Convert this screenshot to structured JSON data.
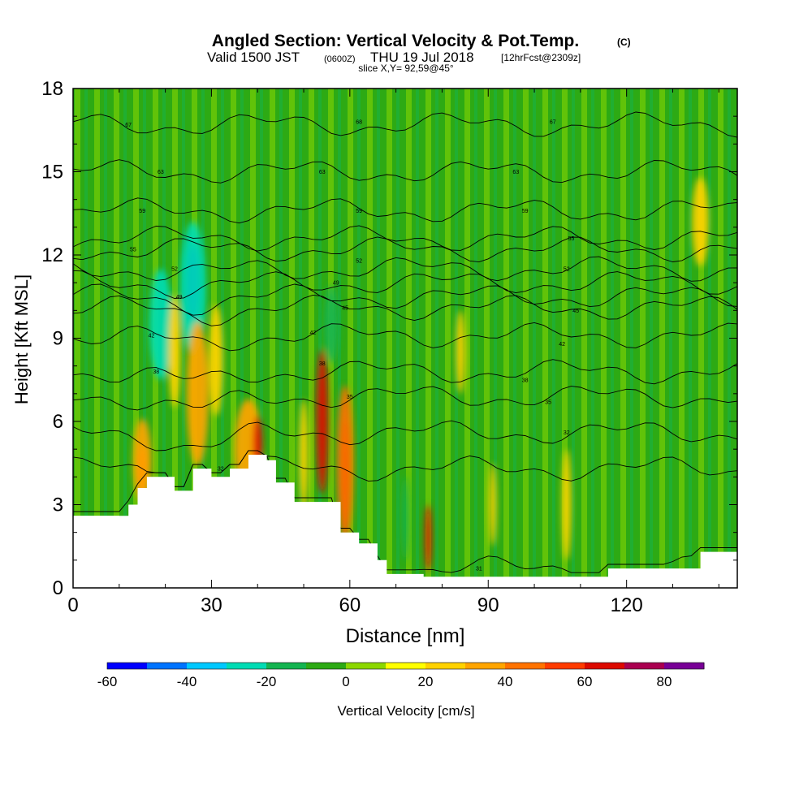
{
  "chart_data": {
    "type": "heatmap",
    "title": "Angled Section: Vertical Velocity & Pot.Temp.",
    "title_unit": "(C)",
    "subtitle": {
      "valid_prefix": "Valid 1500 JST",
      "utc": "(0600Z)",
      "date": "THU 19 Jul 2018",
      "forecast": "[12hrFcst@2309z]"
    },
    "slice_label": "slice X,Y= 92,59@45°",
    "xlabel": "Distance [nm]",
    "ylabel": "Height [Kft MSL]",
    "xlim": [
      0,
      144
    ],
    "ylim": [
      0,
      18
    ],
    "x_ticks": [
      0,
      30,
      60,
      90,
      120
    ],
    "y_ticks": [
      0,
      3,
      6,
      9,
      12,
      15,
      18
    ],
    "grid": false,
    "colorbar": {
      "label": "Vertical Velocity [cm/s]",
      "placement": "bottom",
      "min": -60,
      "max": 90,
      "step": 10,
      "tick_values": [
        -60,
        -40,
        -20,
        0,
        20,
        40,
        60,
        80
      ],
      "colors": [
        "#0000ff",
        "#0074ff",
        "#00c8ff",
        "#00dcb4",
        "#14b450",
        "#2daa14",
        "#8cd700",
        "#ffff00",
        "#ffd200",
        "#ffa500",
        "#ff7300",
        "#ff3c00",
        "#dc0a00",
        "#aa0050",
        "#780096"
      ]
    },
    "background_field_value": 0,
    "terrain_profile": [
      [
        0,
        2.6
      ],
      [
        10,
        2.6
      ],
      [
        12,
        3.0
      ],
      [
        14,
        3.6
      ],
      [
        16,
        4.0
      ],
      [
        20,
        4.0
      ],
      [
        22,
        3.5
      ],
      [
        26,
        4.3
      ],
      [
        28,
        4.3
      ],
      [
        30,
        4.0
      ],
      [
        34,
        4.3
      ],
      [
        38,
        4.8
      ],
      [
        42,
        4.6
      ],
      [
        44,
        3.8
      ],
      [
        48,
        3.1
      ],
      [
        54,
        3.1
      ],
      [
        58,
        2.0
      ],
      [
        62,
        1.6
      ],
      [
        66,
        1.0
      ],
      [
        68,
        0.5
      ],
      [
        76,
        0.4
      ],
      [
        116,
        0.7
      ],
      [
        128,
        0.7
      ],
      [
        136,
        1.3
      ],
      [
        144,
        1.3
      ]
    ],
    "velocity_cells": [
      {
        "x": 15,
        "z": 4.2,
        "rx": 1.2,
        "rz": 0.9,
        "w": 55
      },
      {
        "x": 15,
        "z": 4.6,
        "rx": 2.0,
        "rz": 1.5,
        "w": 30
      },
      {
        "x": 19,
        "z": 9.5,
        "rx": 2.5,
        "rz": 2.0,
        "w": -25
      },
      {
        "x": 22,
        "z": 8.5,
        "rx": 1.3,
        "rz": 2.0,
        "w": 25
      },
      {
        "x": 26,
        "z": 11.0,
        "rx": 1.4,
        "rz": 1.4,
        "w": -55
      },
      {
        "x": 26,
        "z": 10.8,
        "rx": 2.8,
        "rz": 2.4,
        "w": -30
      },
      {
        "x": 27,
        "z": 7.0,
        "rx": 2.4,
        "rz": 2.6,
        "w": 35
      },
      {
        "x": 31,
        "z": 8.2,
        "rx": 1.5,
        "rz": 2.0,
        "w": 25
      },
      {
        "x": 38,
        "z": 5.0,
        "rx": 3.0,
        "rz": 1.8,
        "w": 35
      },
      {
        "x": 40,
        "z": 5.2,
        "rx": 1.0,
        "rz": 1.0,
        "w": 60
      },
      {
        "x": 50,
        "z": 4.8,
        "rx": 1.0,
        "rz": 2.0,
        "w": 25
      },
      {
        "x": 54,
        "z": 6.0,
        "rx": 1.3,
        "rz": 2.6,
        "w": 60
      },
      {
        "x": 56,
        "z": 9.5,
        "rx": 1.6,
        "rz": 1.4,
        "w": -20
      },
      {
        "x": 59,
        "z": 4.0,
        "rx": 1.0,
        "rz": 2.0,
        "w": 75
      },
      {
        "x": 59,
        "z": 4.5,
        "rx": 1.8,
        "rz": 2.8,
        "w": 40
      },
      {
        "x": 77,
        "z": 1.8,
        "rx": 0.7,
        "rz": 1.2,
        "w": 65
      },
      {
        "x": 72,
        "z": 2.5,
        "rx": 0.7,
        "rz": 1.5,
        "w": -20
      },
      {
        "x": 84,
        "z": 8.5,
        "rx": 1.0,
        "rz": 1.5,
        "w": 25
      },
      {
        "x": 91,
        "z": 3.0,
        "rx": 0.8,
        "rz": 1.5,
        "w": 25
      },
      {
        "x": 107,
        "z": 3.0,
        "rx": 1.0,
        "rz": 2.0,
        "w": 25
      },
      {
        "x": 136,
        "z": 13.2,
        "rx": 1.8,
        "rz": 1.6,
        "w": 25
      }
    ],
    "theta_contour_labels": [
      {
        "x": 12,
        "z": 16.7,
        "text": "67"
      },
      {
        "x": 62,
        "z": 16.8,
        "text": "68"
      },
      {
        "x": 104,
        "z": 16.8,
        "text": "67"
      },
      {
        "x": 19,
        "z": 15.0,
        "text": "63"
      },
      {
        "x": 54,
        "z": 15.0,
        "text": "63"
      },
      {
        "x": 96,
        "z": 15.0,
        "text": "63"
      },
      {
        "x": 15,
        "z": 13.6,
        "text": "59"
      },
      {
        "x": 62,
        "z": 13.6,
        "text": "59"
      },
      {
        "x": 98,
        "z": 13.6,
        "text": "59"
      },
      {
        "x": 13,
        "z": 12.2,
        "text": "55"
      },
      {
        "x": 108,
        "z": 12.6,
        "text": "55"
      },
      {
        "x": 22,
        "z": 11.5,
        "text": "52"
      },
      {
        "x": 62,
        "z": 11.8,
        "text": "52"
      },
      {
        "x": 107,
        "z": 11.5,
        "text": "52"
      },
      {
        "x": 23,
        "z": 10.5,
        "text": "49"
      },
      {
        "x": 57,
        "z": 11.0,
        "text": "49"
      },
      {
        "x": 59,
        "z": 10.1,
        "text": "45"
      },
      {
        "x": 109,
        "z": 10.0,
        "text": "45"
      },
      {
        "x": 17,
        "z": 9.1,
        "text": "42"
      },
      {
        "x": 52,
        "z": 9.2,
        "text": "42"
      },
      {
        "x": 106,
        "z": 8.8,
        "text": "42"
      },
      {
        "x": 18,
        "z": 7.8,
        "text": "38"
      },
      {
        "x": 54,
        "z": 8.1,
        "text": "38"
      },
      {
        "x": 98,
        "z": 7.5,
        "text": "38"
      },
      {
        "x": 60,
        "z": 6.9,
        "text": "35"
      },
      {
        "x": 103,
        "z": 6.7,
        "text": "35"
      },
      {
        "x": 107,
        "z": 5.6,
        "text": "32"
      },
      {
        "x": 32,
        "z": 4.3,
        "text": "32"
      },
      {
        "x": 88,
        "z": 0.7,
        "text": "31"
      }
    ]
  }
}
